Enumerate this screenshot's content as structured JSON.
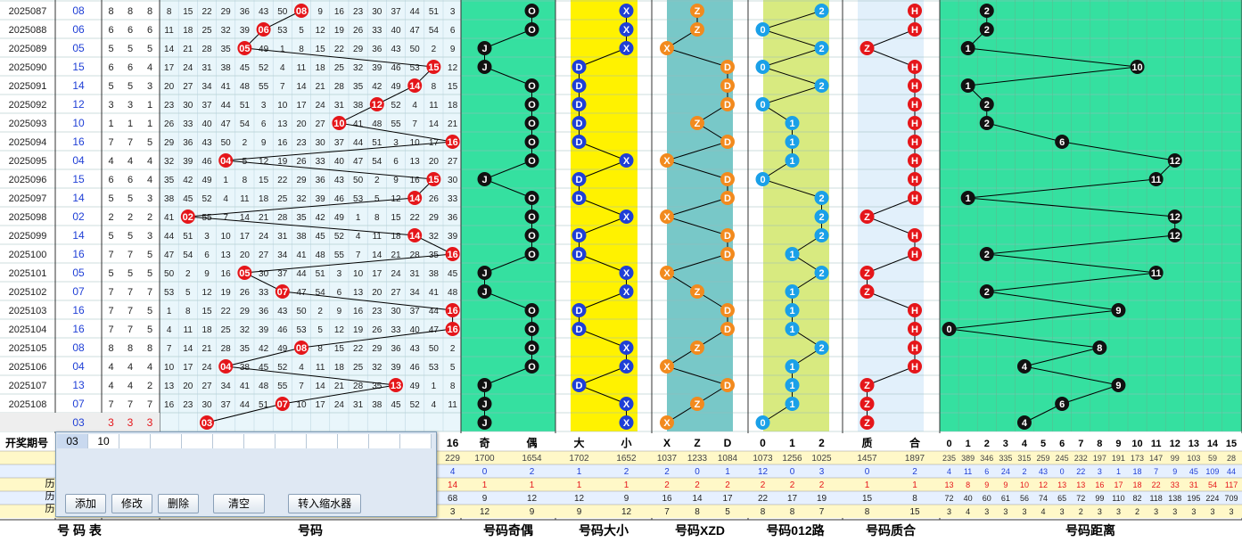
{
  "periods": [
    "2025087",
    "2025088",
    "2025089",
    "2025090",
    "2025091",
    "2025092",
    "2025093",
    "2025094",
    "2025095",
    "2025096",
    "2025097",
    "2025098",
    "2025099",
    "2025100",
    "2025101",
    "2025102",
    "2025103",
    "2025104",
    "2025105",
    "2025106",
    "2025107",
    "2025108"
  ],
  "numbers": [
    "08",
    "06",
    "05",
    "15",
    "14",
    "12",
    "10",
    "16",
    "04",
    "15",
    "14",
    "02",
    "14",
    "16",
    "05",
    "07",
    "16",
    "16",
    "08",
    "04",
    "13",
    "07"
  ],
  "small": [
    [
      8,
      8,
      8
    ],
    [
      6,
      6,
      6
    ],
    [
      5,
      5,
      5
    ],
    [
      6,
      6,
      4
    ],
    [
      5,
      5,
      3
    ],
    [
      3,
      3,
      1
    ],
    [
      1,
      1,
      1
    ],
    [
      7,
      7,
      5
    ],
    [
      4,
      4,
      4
    ],
    [
      6,
      6,
      4
    ],
    [
      5,
      5,
      3
    ],
    [
      2,
      2,
      2
    ],
    [
      5,
      5,
      3
    ],
    [
      7,
      7,
      5
    ],
    [
      5,
      5,
      5
    ],
    [
      7,
      7,
      7
    ],
    [
      7,
      7,
      5
    ],
    [
      7,
      7,
      5
    ],
    [
      8,
      8,
      8
    ],
    [
      4,
      4,
      4
    ],
    [
      4,
      4,
      2
    ],
    [
      7,
      7,
      7
    ]
  ],
  "pred": {
    "number": "03",
    "small": [
      3,
      3,
      3
    ]
  },
  "headers": {
    "period_label": "开奖期号",
    "num_last": "16",
    "odd": "奇",
    "even": "偶",
    "big": "大",
    "sml": "小",
    "x": "X",
    "z": "Z",
    "d": "D",
    "r0": "0",
    "r1": "1",
    "r2": "2",
    "prime": "质",
    "comp": "合",
    "dist": [
      "0",
      "1",
      "2",
      "3",
      "4",
      "5",
      "6",
      "7",
      "8",
      "9",
      "10",
      "11",
      "12",
      "13",
      "14",
      "15"
    ]
  },
  "footer": {
    "t1": "号 码 表",
    "t2": "号码",
    "t3": "号码奇偶",
    "t4": "号码大小",
    "t5": "号码XZD",
    "t6": "号码012路",
    "t7": "号码质合",
    "t8": "号码距离"
  },
  "stats": [
    {
      "n16": "229",
      "oe": [
        "1700",
        "1654"
      ],
      "bs": [
        "1702",
        "1652"
      ],
      "xzd": [
        "1037",
        "1233",
        "1084"
      ],
      "r": [
        "1073",
        "1256",
        "1025"
      ],
      "pc": [
        "1457",
        "1897"
      ],
      "dist": [
        "235",
        "389",
        "346",
        "335",
        "315",
        "259",
        "245",
        "232",
        "197",
        "191",
        "173",
        "147",
        "99",
        "103",
        "59",
        "28"
      ]
    },
    {
      "n16": "4",
      "oe": [
        "0",
        "2"
      ],
      "bs": [
        "1",
        "2"
      ],
      "xzd": [
        "2",
        "0",
        "1"
      ],
      "r": [
        "12",
        "0",
        "3"
      ],
      "pc": [
        "0",
        "2"
      ],
      "dist": [
        "4",
        "11",
        "6",
        "24",
        "2",
        "43",
        "0",
        "22",
        "3",
        "1",
        "18",
        "7",
        "9",
        "45",
        "109",
        "44"
      ]
    },
    {
      "n16": "14",
      "oe": [
        "1",
        "1"
      ],
      "bs": [
        "1",
        "1"
      ],
      "xzd": [
        "2",
        "2",
        "2"
      ],
      "r": [
        "2",
        "2",
        "2"
      ],
      "pc": [
        "1",
        "1"
      ],
      "dist": [
        "13",
        "8",
        "9",
        "9",
        "10",
        "12",
        "13",
        "13",
        "16",
        "17",
        "18",
        "22",
        "33",
        "31",
        "54",
        "117"
      ]
    },
    {
      "n16": "68",
      "oe": [
        "9",
        "12"
      ],
      "bs": [
        "12",
        "9"
      ],
      "xzd": [
        "16",
        "14",
        "17"
      ],
      "r": [
        "22",
        "17",
        "19"
      ],
      "pc": [
        "15",
        "8"
      ],
      "dist": [
        "72",
        "40",
        "60",
        "61",
        "56",
        "74",
        "65",
        "72",
        "99",
        "110",
        "82",
        "118",
        "138",
        "195",
        "224",
        "709"
      ]
    },
    {
      "n16": "3",
      "oe": [
        "12",
        "9"
      ],
      "bs": [
        "9",
        "12"
      ],
      "xzd": [
        "7",
        "8",
        "5"
      ],
      "r": [
        "8",
        "8",
        "7"
      ],
      "pc": [
        "8",
        "15"
      ],
      "dist": [
        "3",
        "4",
        "3",
        "3",
        "3",
        "4",
        "3",
        "2",
        "3",
        "3",
        "2",
        "3",
        "3",
        "3",
        "3",
        "3"
      ]
    }
  ],
  "editor": {
    "tab1": "03",
    "tab2": "10",
    "add": "添加",
    "edit": "修改",
    "del": "删除",
    "clear": "清空",
    "transfer": "转入缩水器"
  },
  "row_labels": [
    "历",
    "历",
    "历"
  ],
  "colors": {
    "red": "#e5161a",
    "black": "#111111",
    "blue": "#1f3fd6",
    "orange": "#f28a1e",
    "cyan": "#1aa0e8",
    "green_bg": "#35e0a0",
    "yellow_bg": "#fff200",
    "teal_bg": "#78c8c8",
    "lime_bg": "#d8ea80"
  }
}
